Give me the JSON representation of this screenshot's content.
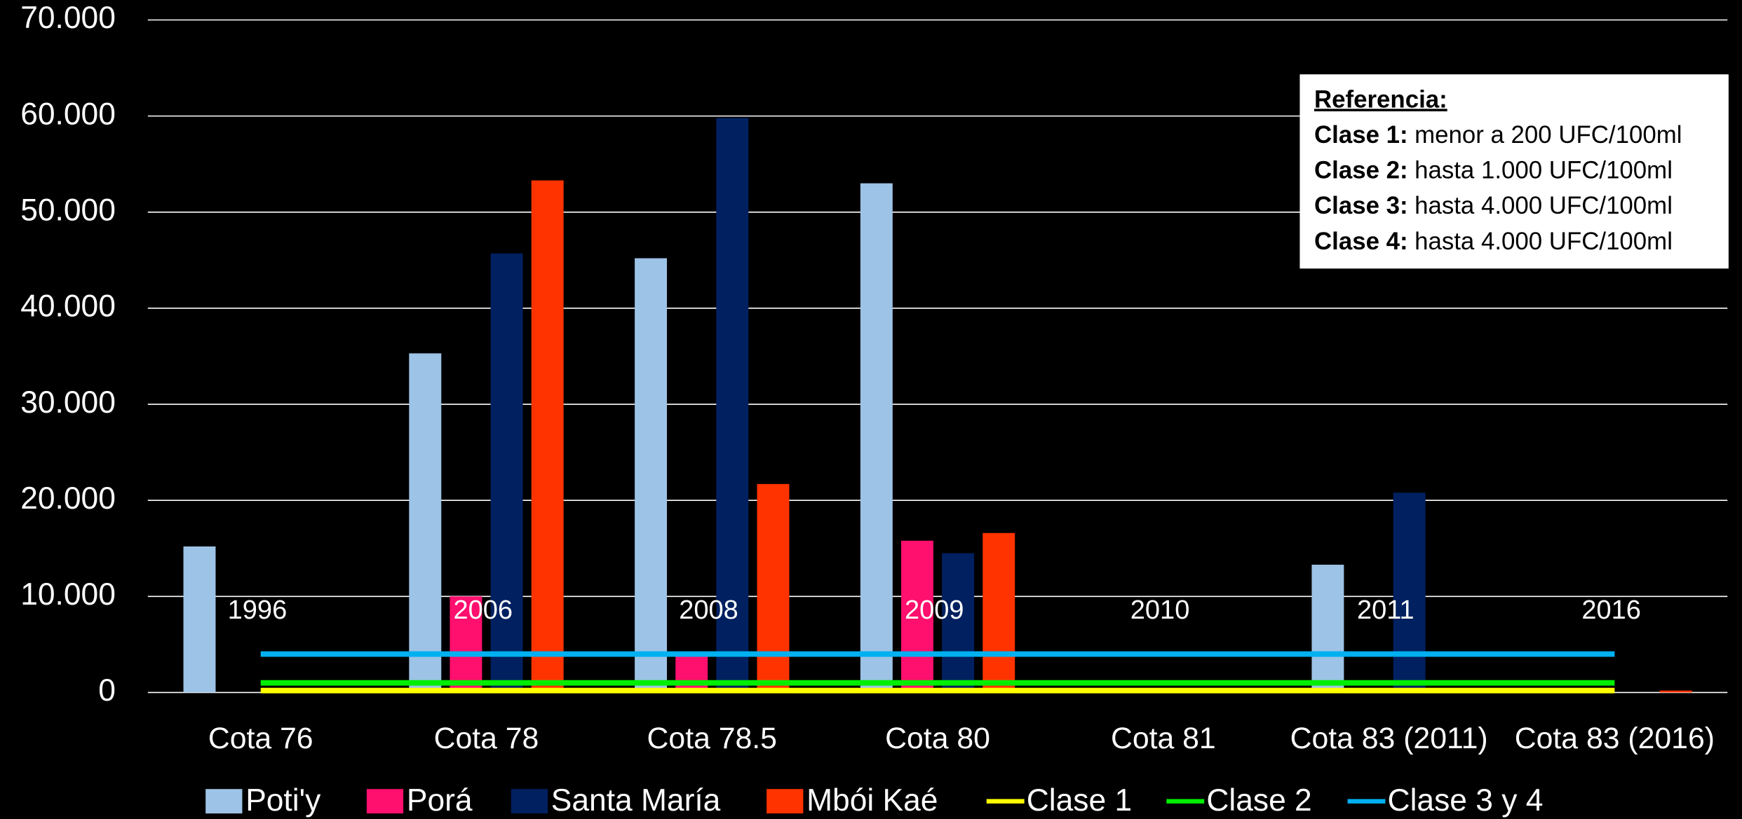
{
  "chart_data": {
    "type": "bar",
    "categories": [
      "Cota 76",
      "Cota 78",
      "Cota 78.5",
      "Cota 80",
      "Cota 81",
      "Cota 83 (2011)",
      "Cota 83 (2016)"
    ],
    "category_annotations": [
      "1996",
      "2006",
      "2008",
      "2009",
      "2010",
      "2011",
      "2016"
    ],
    "series": [
      {
        "name": "Poti'y",
        "color": "#9dc3e6",
        "values": [
          15200,
          35300,
          45200,
          53000,
          null,
          13300,
          null
        ]
      },
      {
        "name": "Porá",
        "color": "#ff0f6e",
        "values": [
          null,
          10000,
          3900,
          15800,
          null,
          null,
          null
        ]
      },
      {
        "name": "Santa María",
        "color": "#002060",
        "values": [
          null,
          45700,
          59800,
          14500,
          null,
          20800,
          null
        ]
      },
      {
        "name": "Mbói Kaé",
        "color": "#ff3300",
        "values": [
          null,
          53300,
          21700,
          16600,
          null,
          null,
          200
        ]
      },
      {
        "name": "Clase 1",
        "type": "line",
        "color": "#ffff00",
        "values": [
          200,
          200,
          200,
          200,
          200,
          200,
          200
        ]
      },
      {
        "name": "Clase 2",
        "type": "line",
        "color": "#00ee00",
        "values": [
          1000,
          1000,
          1000,
          1000,
          1000,
          1000,
          1000
        ]
      },
      {
        "name": "Clase 3 y 4",
        "type": "line",
        "color": "#00b0f0",
        "values": [
          4000,
          4000,
          4000,
          4000,
          4000,
          4000,
          4000
        ]
      }
    ],
    "ylim": [
      0,
      70000
    ],
    "yticks": [
      0,
      {
        "value": 10000,
        "label": "10.000"
      },
      {
        "value": 20000,
        "label": "20.000"
      },
      {
        "value": 30000,
        "label": "30.000"
      },
      {
        "value": 40000,
        "label": "40.000"
      },
      {
        "value": 50000,
        "label": "50.000"
      },
      {
        "value": 60000,
        "label": "60.000"
      },
      {
        "value": 70000,
        "label": "70.000"
      }
    ],
    "grid": true,
    "legend": "bottom",
    "reference_box": {
      "title": "Referencia:",
      "lines": [
        {
          "label": "Clase 1:",
          "text": "menor a 200 UFC/100ml"
        },
        {
          "label": "Clase 2:",
          "text": "hasta 1.000 UFC/100ml"
        },
        {
          "label": "Clase 3:",
          "text": "hasta 4.000 UFC/100ml"
        },
        {
          "label": "Clase 4:",
          "text": "hasta 4.000 UFC/100ml"
        }
      ]
    }
  }
}
